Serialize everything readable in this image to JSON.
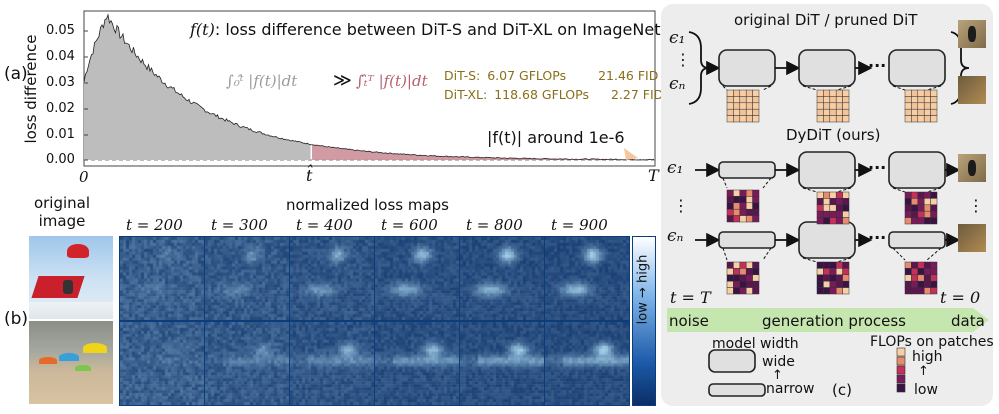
{
  "panel_a": {
    "label": "(a)",
    "title_fn": "f(t)",
    "title_text": ": loss difference between DiT-S and DiT-XL on ImageNet",
    "ylabel": "loss difference",
    "yticks": [
      "0.05",
      "0.04",
      "0.03",
      "0.02",
      "0.01",
      "0.00"
    ],
    "xticks": [
      "0",
      "t̂",
      "T"
    ],
    "integral_left": "∫₀ᵗ̂ |f(t)|dt",
    "much_greater": "≫",
    "integral_right": "∫ₜ̂ᵀ |f(t)|dt",
    "models": [
      {
        "name": "DiT-S:",
        "gflops": "6.07 GFLOPs",
        "fid": "21.46 FID"
      },
      {
        "name": "DiT-XL:",
        "gflops": "118.68 GFLOPs",
        "fid": "2.27 FID"
      }
    ],
    "tail_note": "|f(t)| around 1e-6"
  },
  "panel_b": {
    "label": "(b)",
    "original_image_label": "original\nimage",
    "maps_title": "normalized loss maps",
    "timesteps": [
      "t = 200",
      "t = 300",
      "t = 400",
      "t = 600",
      "t = 800",
      "t = 900"
    ],
    "scale_label": "low → high"
  },
  "panel_c": {
    "label": "(c)",
    "top_title": "original DiT / pruned DiT",
    "mid_title": "DyDiT (ours)",
    "eps1": "ϵ₁",
    "epsn": "ϵₙ",
    "vdots": "⋮",
    "hdots": "···",
    "t_start": "t = T",
    "t_end": "t = 0",
    "process_left": "noise",
    "process_mid": "generation process",
    "process_right": "data",
    "legend_width_title": "model width",
    "legend_wide": "wide",
    "legend_narrow": "narrow",
    "legend_up": "↑",
    "legend_flops_title": "FLOPs on patches",
    "legend_high": "high",
    "legend_low": "low"
  },
  "colors": {
    "area_fill": "#bdbdbd",
    "area_tail": "#c98a93",
    "integral_left": "#9a9a9a",
    "integral_right": "#b5606e",
    "model_text": "#8a6f1a",
    "heat_dark": "#0b2e66",
    "heat_light": "#9fc2ea",
    "panel_c_bg": "#ededed",
    "process_bar": "#c6e6b0"
  }
}
